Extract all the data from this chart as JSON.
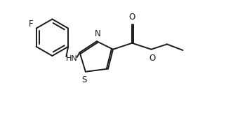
{
  "background_color": "#ffffff",
  "line_color": "#1a1a1a",
  "line_width": 1.4,
  "fig_width": 3.22,
  "fig_height": 1.62,
  "dpi": 100,
  "xlim": [
    0,
    10
  ],
  "ylim": [
    0,
    5
  ]
}
